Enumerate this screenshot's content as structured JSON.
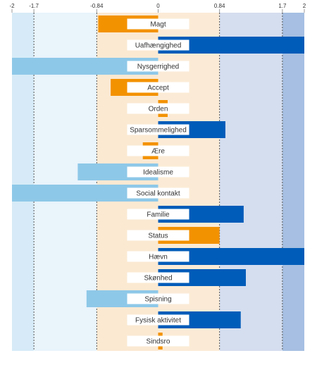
{
  "chart_data": {
    "type": "bar",
    "orientation": "horizontal",
    "xlim": [
      -2,
      2
    ],
    "ticks": [
      {
        "value": -2,
        "label": "-2"
      },
      {
        "value": -1.7,
        "label": "-1.7"
      },
      {
        "value": -0.84,
        "label": "-0.84"
      },
      {
        "value": 0,
        "label": "0"
      },
      {
        "value": 0.84,
        "label": "0.84"
      },
      {
        "value": 1.7,
        "label": "1.7"
      },
      {
        "value": 2,
        "label": "2"
      }
    ],
    "bands": [
      {
        "from": -2,
        "to": -1.7,
        "color": "#d6ebf7"
      },
      {
        "from": -1.7,
        "to": -0.84,
        "color": "#e9f4fb"
      },
      {
        "from": -0.84,
        "to": 0,
        "color": "#fbe9d2"
      },
      {
        "from": 0,
        "to": 0.84,
        "color": "#fbebd6"
      },
      {
        "from": 0.84,
        "to": 1.7,
        "color": "#d5deef"
      },
      {
        "from": 1.7,
        "to": 2,
        "color": "#a6bfe2"
      }
    ],
    "colors": {
      "low_strong": "#8ec8e8",
      "near_zero": "#f39200",
      "high_strong": "#005cb9",
      "label_box": "#ffffff",
      "gridline": "#555555"
    },
    "categories": [
      {
        "label": "Magt",
        "value": -0.82,
        "color": "near_zero"
      },
      {
        "label": "Uafhængighed",
        "value": 2.0,
        "color": "high_strong"
      },
      {
        "label": "Nysgerrighed",
        "value": -2.0,
        "color": "low_strong"
      },
      {
        "label": "Accept",
        "value": -0.65,
        "color": "near_zero"
      },
      {
        "label": "Orden",
        "value": 0.13,
        "color": "near_zero"
      },
      {
        "label": "Sparsommelighed",
        "value": 0.92,
        "color": "high_strong"
      },
      {
        "label": "Ære",
        "value": -0.21,
        "color": "near_zero"
      },
      {
        "label": "Idealisme",
        "value": -1.1,
        "color": "low_strong"
      },
      {
        "label": "Social kontakt",
        "value": -2.0,
        "color": "low_strong"
      },
      {
        "label": "Familie",
        "value": 1.17,
        "color": "high_strong"
      },
      {
        "label": "Status",
        "value": 0.84,
        "color": "near_zero"
      },
      {
        "label": "Hævn",
        "value": 2.0,
        "color": "high_strong"
      },
      {
        "label": "Skønhed",
        "value": 1.2,
        "color": "high_strong"
      },
      {
        "label": "Spisning",
        "value": -0.98,
        "color": "low_strong"
      },
      {
        "label": "Fysisk aktivitet",
        "value": 1.13,
        "color": "high_strong"
      },
      {
        "label": "Sindsro",
        "value": 0.06,
        "color": "near_zero"
      }
    ]
  }
}
